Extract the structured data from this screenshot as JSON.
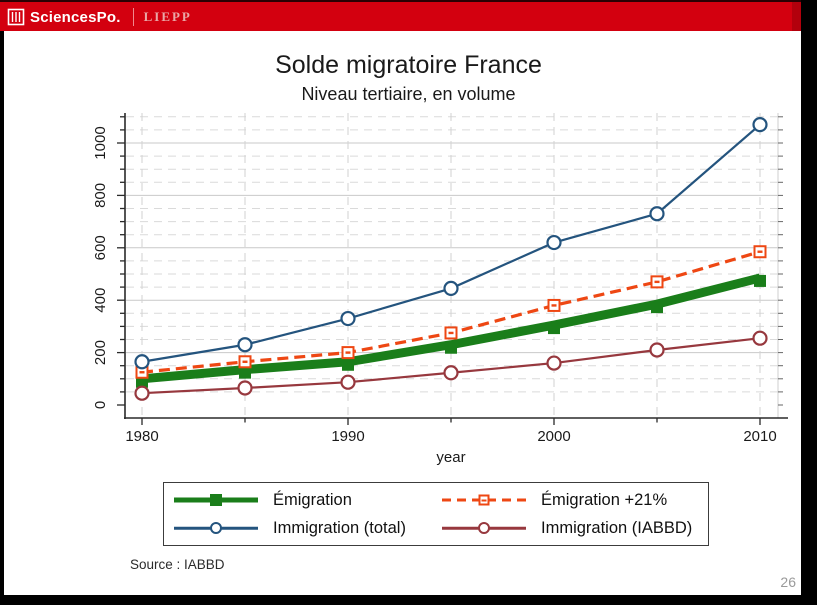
{
  "header": {
    "brand": "SciencesPo.",
    "dept": "LIEPP",
    "brand_color": "#d3000f"
  },
  "chart_data": {
    "type": "line",
    "title": "Solde migratoire France",
    "subtitle": "Niveau tertiaire, en volume",
    "xlabel": "year",
    "ylabel": "",
    "x": [
      1980,
      1985,
      1990,
      1995,
      2000,
      2005,
      2010
    ],
    "xticks_labeled": [
      1980,
      1990,
      2000,
      2010
    ],
    "yticks": [
      0,
      200,
      400,
      600,
      800,
      1000
    ],
    "ylim": [
      0,
      1100
    ],
    "minor_grid_step_y": 50,
    "grid": "on",
    "legend_position": "bottom-box-2x2",
    "series": [
      {
        "name": "Émigration",
        "color": "#1a7e1a",
        "line_style": "thick-solid",
        "marker": "filled-square",
        "values": [
          100,
          135,
          165,
          230,
          305,
          385,
          485
        ]
      },
      {
        "name": "Émigration +21%",
        "color": "#ee4713",
        "line_style": "dashed",
        "marker": "open-square",
        "values": [
          125,
          165,
          200,
          275,
          380,
          470,
          585
        ]
      },
      {
        "name": "Immigration (total)",
        "color": "#24547e",
        "line_style": "solid",
        "marker": "open-circle",
        "values": [
          165,
          230,
          330,
          445,
          620,
          730,
          1070
        ]
      },
      {
        "name": "Immigration (IABBD)",
        "color": "#97383e",
        "line_style": "solid",
        "marker": "open-circle",
        "values": [
          45,
          65,
          87,
          123,
          160,
          210,
          255
        ]
      }
    ]
  },
  "footer": {
    "source_note": "Source : IABBD",
    "page_number": "26"
  }
}
